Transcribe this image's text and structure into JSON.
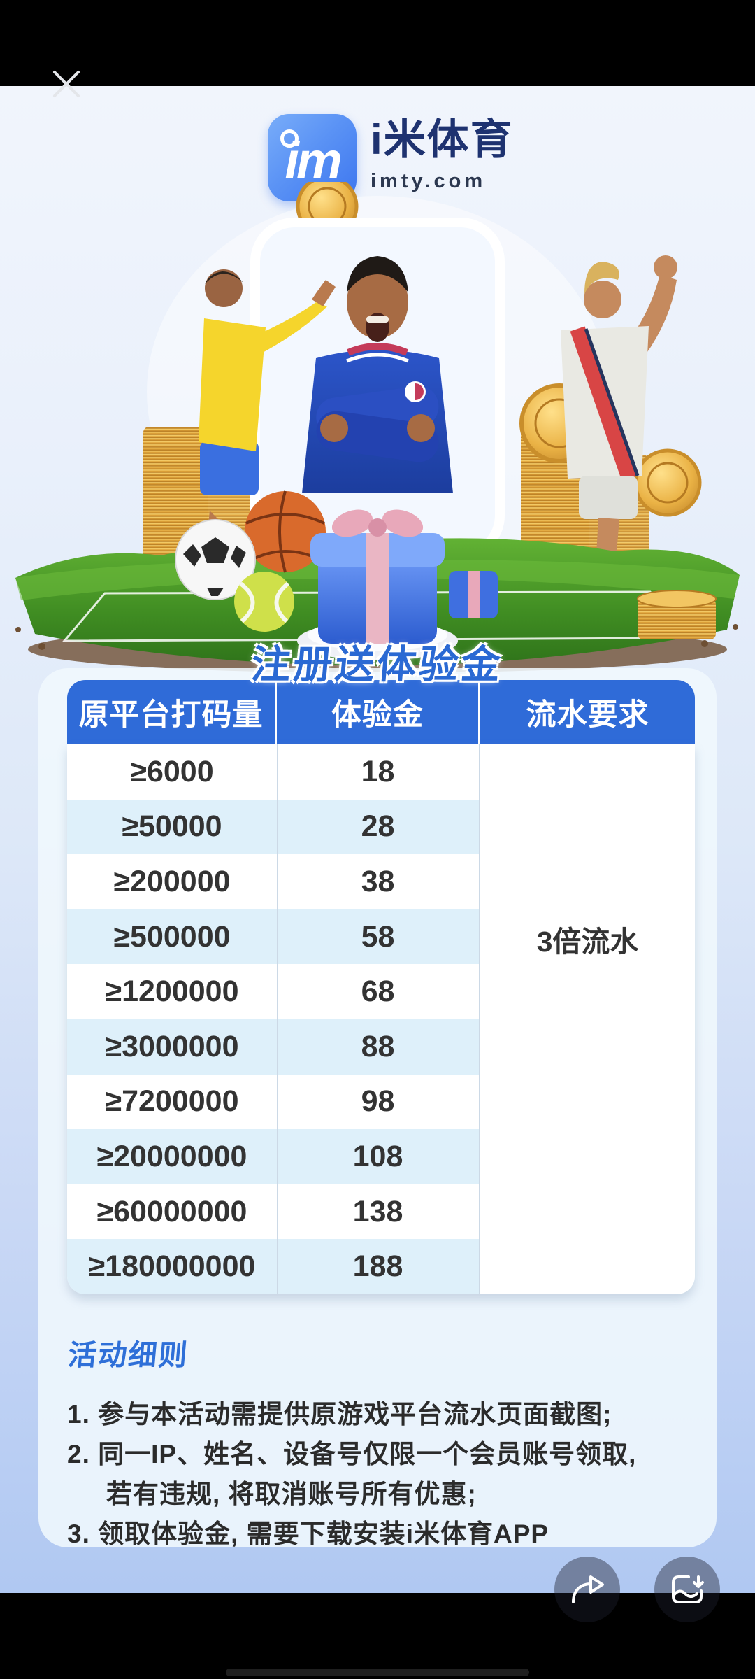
{
  "header": {
    "brand_name": "i米体育",
    "brand_domain": "imty.com",
    "logo_monogram": "im"
  },
  "promo_title": "注册送体验金",
  "table": {
    "columns": [
      "原平台打码量",
      "体验金",
      "流水要求"
    ],
    "rows": [
      {
        "wager": "≥6000",
        "bonus": "18"
      },
      {
        "wager": "≥50000",
        "bonus": "28"
      },
      {
        "wager": "≥200000",
        "bonus": "38"
      },
      {
        "wager": "≥500000",
        "bonus": "58"
      },
      {
        "wager": "≥1200000",
        "bonus": "68"
      },
      {
        "wager": "≥3000000",
        "bonus": "88"
      },
      {
        "wager": "≥7200000",
        "bonus": "98"
      },
      {
        "wager": "≥20000000",
        "bonus": "108"
      },
      {
        "wager": "≥60000000",
        "bonus": "138"
      },
      {
        "wager": "≥180000000",
        "bonus": "188"
      }
    ],
    "turnover_requirement": "3倍流水"
  },
  "rules": {
    "title": "活动细则",
    "lines": [
      {
        "text": "1. 参与本活动需提供原游戏平台流水页面截图;",
        "indent": false
      },
      {
        "text": "2. 同一IP、姓名、设备号仅限一个会员账号领取,",
        "indent": false
      },
      {
        "text": "若有违规, 将取消账号所有优惠;",
        "indent": true
      },
      {
        "text": "3. 领取体验金, 需要下载安装i米体育APP",
        "indent": false
      }
    ]
  },
  "icons": {
    "close": "close-x",
    "share": "share-forward-arrow",
    "save": "image-download"
  },
  "colors": {
    "accent_blue": "#2e6bd6",
    "table_header_blue": "#2f6bd8",
    "row_stripe_blue": "#def0fa",
    "brand_navy": "#1e3270",
    "text_dark": "#333333"
  }
}
